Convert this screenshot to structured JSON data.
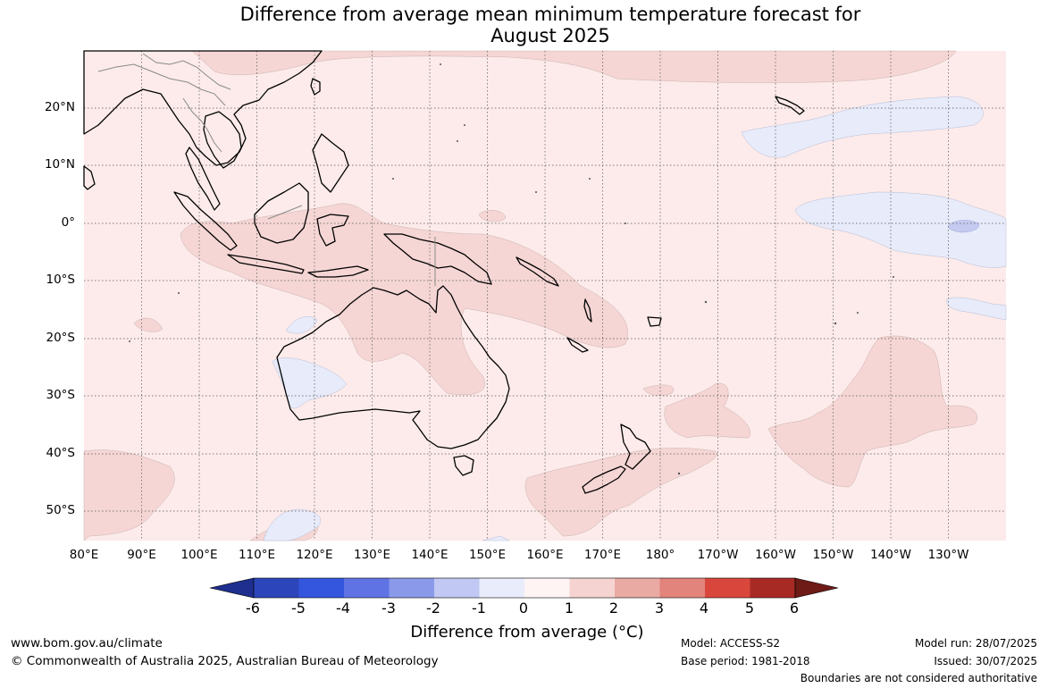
{
  "title_line1": "Difference from average mean minimum temperature forecast for",
  "title_line2": "August 2025",
  "map": {
    "projection": "plate-carree",
    "lon_range": [
      80,
      240
    ],
    "lat_range": [
      -55,
      30
    ],
    "colors": {
      "background_0_1": "#fcebea",
      "anomaly_1_2": "#f5d6d4",
      "anomaly_neg_1_0": "#e7ebfa",
      "anomaly_neg_2_neg_1": "#c5cbf0",
      "coast": "#000000",
      "border": "#888888",
      "grid": "#555555"
    },
    "lat_ticks": [
      "20°N",
      "10°N",
      "0°",
      "10°S",
      "20°S",
      "30°S",
      "40°S",
      "50°S"
    ],
    "lon_ticks": [
      "80°E",
      "90°E",
      "100°E",
      "110°E",
      "120°E",
      "130°E",
      "140°E",
      "150°E",
      "160°E",
      "170°E",
      "180°",
      "170°W",
      "160°W",
      "150°W",
      "140°W",
      "130°W"
    ],
    "grid": "on"
  },
  "colorbar": {
    "labels": [
      "-6",
      "-5",
      "-4",
      "-3",
      "-2",
      "-1",
      "0",
      "1",
      "2",
      "3",
      "4",
      "5",
      "6"
    ],
    "colors": [
      "#1e2f8f",
      "#2d45ba",
      "#3456de",
      "#5f73e4",
      "#8a99e9",
      "#c0c8f3",
      "#e9ecfb",
      "#fdf4f3",
      "#f5d3d1",
      "#eaaaa4",
      "#e2847c",
      "#d9473c",
      "#a82a24",
      "#6e1a16"
    ],
    "title": "Difference from average (°C)"
  },
  "footer": {
    "website": "www.bom.gov.au/climate",
    "copyright": "© Commonwealth of Australia 2025, Australian Bureau of Meteorology",
    "model": "Model: ACCESS-S2",
    "base_period": "Base period: 1981-2018",
    "model_run": "Model run: 28/07/2025",
    "issued": "Issued: 30/07/2025",
    "disclaimer": "Boundaries are not considered authoritative"
  }
}
